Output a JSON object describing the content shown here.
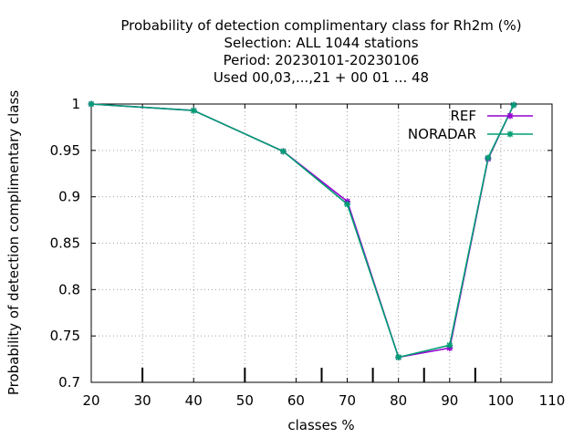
{
  "chart_data": {
    "type": "line",
    "title_lines": [
      "Probability of detection complimentary class  for Rh2m (%)",
      "Selection: ALL   1044 stations",
      "Period: 20230101-20230106",
      "Used  00,03,...,21  + 00 01 ... 48"
    ],
    "xlabel": "classes %",
    "ylabel": "Probability of detection complimentary class",
    "xlim": [
      20,
      110
    ],
    "ylim": [
      0.7,
      1.0
    ],
    "x_ticks": [
      20,
      30,
      40,
      50,
      60,
      70,
      80,
      90,
      100,
      110
    ],
    "x_tick_labels": [
      "20",
      "30",
      "40",
      "50",
      "60",
      "70",
      "80",
      "90",
      "100",
      "110"
    ],
    "y_ticks": [
      0.7,
      0.75,
      0.8,
      0.85,
      0.9,
      0.95,
      1.0
    ],
    "y_tick_labels": [
      "0.7",
      "0.75",
      "0.8",
      "0.85",
      "0.9",
      "0.95",
      "1"
    ],
    "minor_x_ticks": [
      30,
      50,
      65,
      75,
      85,
      95
    ],
    "grid": true,
    "legend_position": "top-right",
    "series": [
      {
        "name": "REF",
        "color": "#9400d3",
        "x": [
          20,
          40,
          57.5,
          70,
          80,
          90,
          97.5,
          102.5
        ],
        "y": [
          1.0,
          0.993,
          0.949,
          0.895,
          0.727,
          0.737,
          0.941,
          0.999
        ]
      },
      {
        "name": "NORADAR",
        "color": "#009e73",
        "x": [
          20,
          40,
          57.5,
          70,
          80,
          90,
          97.5,
          102.5
        ],
        "y": [
          1.0,
          0.993,
          0.949,
          0.892,
          0.727,
          0.74,
          0.942,
          0.999
        ]
      }
    ]
  }
}
